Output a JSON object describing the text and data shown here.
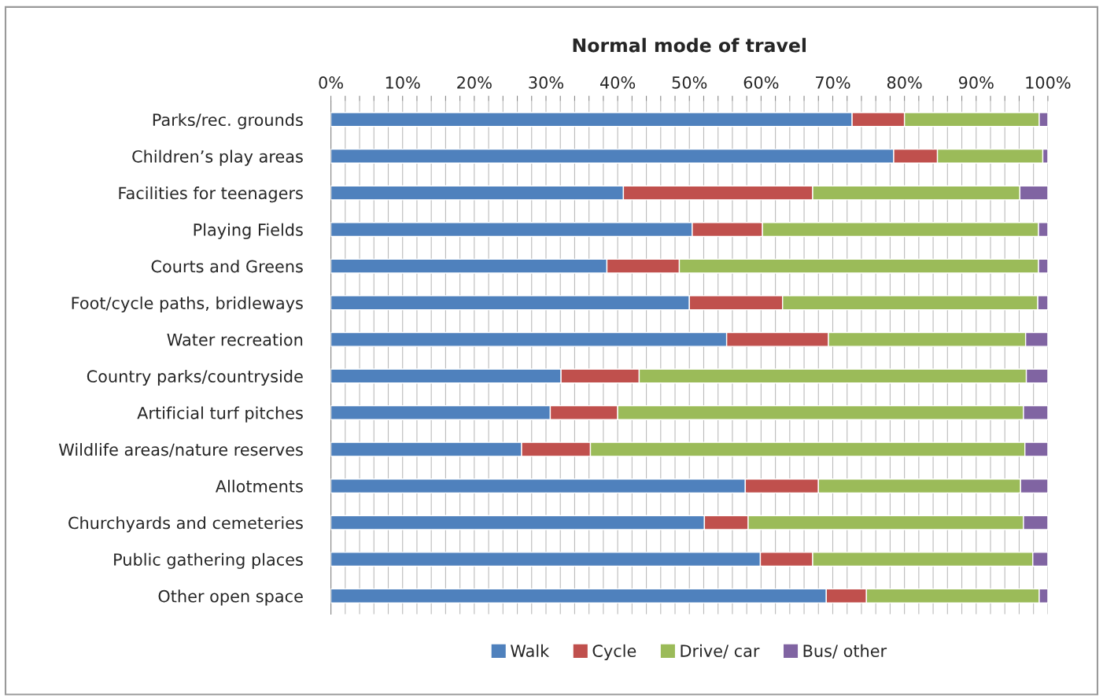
{
  "chart_data": {
    "type": "bar",
    "orientation": "horizontal",
    "stacked": true,
    "title": "Normal mode of travel",
    "categories": [
      "Parks/rec. grounds",
      "Children’s play areas",
      "Facilities for teenagers",
      "Playing Fields",
      "Courts and Greens",
      "Foot/cycle paths, bridleways",
      "Water recreation",
      "Country parks/countryside",
      "Artificial turf pitches",
      "Wildlife areas/nature reserves",
      "Allotments",
      "Churchyards and cemeteries",
      "Public gathering places",
      "Other open space"
    ],
    "series": [
      {
        "name": "Walk",
        "color": "#4f81bd",
        "values": [
          72.7,
          78.5,
          40.8,
          50.4,
          38.5,
          50.0,
          55.2,
          32.1,
          30.6,
          26.6,
          57.8,
          52.1,
          59.9,
          69.1
        ]
      },
      {
        "name": "Cycle",
        "color": "#c0504d",
        "values": [
          7.3,
          6.1,
          26.4,
          9.8,
          10.1,
          13.0,
          14.2,
          10.9,
          9.4,
          9.6,
          10.2,
          6.1,
          7.3,
          5.6
        ]
      },
      {
        "name": "Drive/ car",
        "color": "#9bbb59",
        "values": [
          18.8,
          14.7,
          28.9,
          38.5,
          50.1,
          35.6,
          27.5,
          54.0,
          56.6,
          60.6,
          28.2,
          38.4,
          30.7,
          24.1
        ]
      },
      {
        "name": "Bus/ other",
        "color": "#8064a2",
        "values": [
          1.2,
          0.7,
          3.9,
          1.3,
          1.3,
          1.4,
          3.1,
          3.0,
          3.4,
          3.2,
          3.8,
          3.4,
          2.1,
          1.2
        ]
      }
    ],
    "xlim": [
      0,
      100
    ],
    "xticks": [
      {
        "value": 0,
        "label": "0%"
      },
      {
        "value": 2,
        "label": null
      },
      {
        "value": 4,
        "label": null
      },
      {
        "value": 6,
        "label": null
      },
      {
        "value": 8,
        "label": null
      },
      {
        "value": 10,
        "label": "10%"
      },
      {
        "value": 12,
        "label": null
      },
      {
        "value": 14,
        "label": null
      },
      {
        "value": 16,
        "label": null
      },
      {
        "value": 18,
        "label": null
      },
      {
        "value": 20,
        "label": "20%"
      },
      {
        "value": 22,
        "label": null
      },
      {
        "value": 24,
        "label": null
      },
      {
        "value": 26,
        "label": null
      },
      {
        "value": 28,
        "label": null
      },
      {
        "value": 30,
        "label": "30%"
      },
      {
        "value": 32,
        "label": null
      },
      {
        "value": 34,
        "label": null
      },
      {
        "value": 36,
        "label": null
      },
      {
        "value": 38,
        "label": null
      },
      {
        "value": 40,
        "label": "40%"
      },
      {
        "value": 42,
        "label": null
      },
      {
        "value": 44,
        "label": null
      },
      {
        "value": 46,
        "label": null
      },
      {
        "value": 48,
        "label": null
      },
      {
        "value": 50,
        "label": "50%"
      },
      {
        "value": 52,
        "label": null
      },
      {
        "value": 54,
        "label": null
      },
      {
        "value": 56,
        "label": null
      },
      {
        "value": 58,
        "label": null
      },
      {
        "value": 60,
        "label": "60%"
      },
      {
        "value": 62,
        "label": null
      },
      {
        "value": 64,
        "label": null
      },
      {
        "value": 66,
        "label": null
      },
      {
        "value": 68,
        "label": null
      },
      {
        "value": 70,
        "label": "70%"
      },
      {
        "value": 72,
        "label": null
      },
      {
        "value": 74,
        "label": null
      },
      {
        "value": 76,
        "label": null
      },
      {
        "value": 78,
        "label": null
      },
      {
        "value": 80,
        "label": "80%"
      },
      {
        "value": 82,
        "label": null
      },
      {
        "value": 84,
        "label": null
      },
      {
        "value": 86,
        "label": null
      },
      {
        "value": 88,
        "label": null
      },
      {
        "value": 90,
        "label": "90%"
      },
      {
        "value": 92,
        "label": null
      },
      {
        "value": 94,
        "label": null
      },
      {
        "value": 96,
        "label": null
      },
      {
        "value": 98,
        "label": null
      },
      {
        "value": 100,
        "label": "100%"
      }
    ],
    "grid": "x",
    "legend": "bottom"
  }
}
